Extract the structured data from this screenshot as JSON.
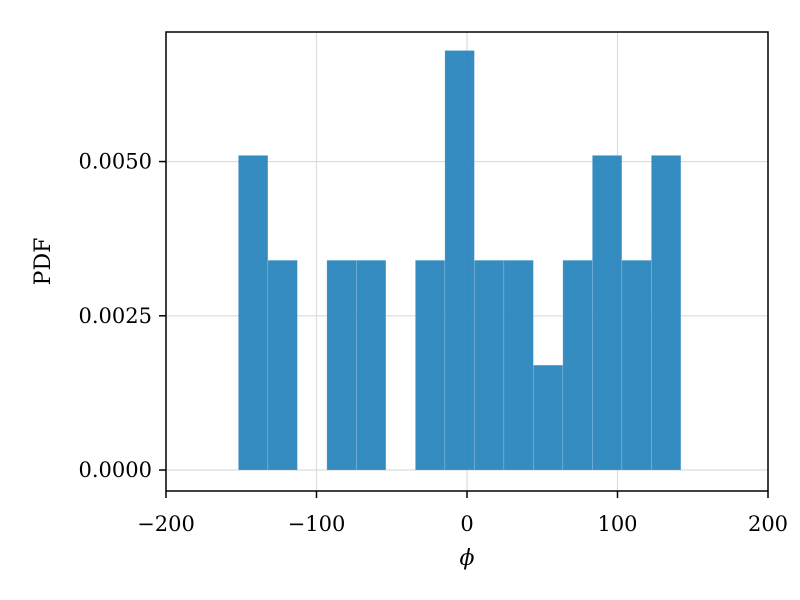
{
  "chart_data": {
    "type": "bar",
    "title": "",
    "xlabel": "ϕ",
    "ylabel": "PDF",
    "xlim": [
      -200,
      200
    ],
    "ylim": [
      -0.00034,
      0.0071
    ],
    "grid": true,
    "xticks": [
      -200,
      -100,
      0,
      100,
      200
    ],
    "xtick_labels": [
      "−200",
      "−100",
      "0",
      "100",
      "200"
    ],
    "yticks": [
      0.0,
      0.0025,
      0.005
    ],
    "ytick_labels": [
      "0.0000",
      "0.0025",
      "0.0050"
    ],
    "bin_width": 19.6,
    "bar_color": "#1f7fb9",
    "bins": [
      {
        "x0": -151.9,
        "x1": -132.3,
        "value": 0.0051
      },
      {
        "x0": -132.3,
        "x1": -112.7,
        "value": 0.0034
      },
      {
        "x0": -112.7,
        "x1": -93.1,
        "value": 0.0
      },
      {
        "x0": -93.1,
        "x1": -73.5,
        "value": 0.0034
      },
      {
        "x0": -73.5,
        "x1": -53.9,
        "value": 0.0034
      },
      {
        "x0": -53.9,
        "x1": -34.3,
        "value": 0.0
      },
      {
        "x0": -34.3,
        "x1": -14.7,
        "value": 0.0034
      },
      {
        "x0": -14.7,
        "x1": 4.9,
        "value": 0.0068
      },
      {
        "x0": 4.9,
        "x1": 24.5,
        "value": 0.0034
      },
      {
        "x0": 24.5,
        "x1": 44.1,
        "value": 0.0034
      },
      {
        "x0": 44.1,
        "x1": 63.7,
        "value": 0.0017
      },
      {
        "x0": 63.7,
        "x1": 83.3,
        "value": 0.0034
      },
      {
        "x0": 83.3,
        "x1": 102.9,
        "value": 0.0051
      },
      {
        "x0": 102.9,
        "x1": 122.5,
        "value": 0.0034
      },
      {
        "x0": 122.5,
        "x1": 142.1,
        "value": 0.0051
      }
    ]
  }
}
